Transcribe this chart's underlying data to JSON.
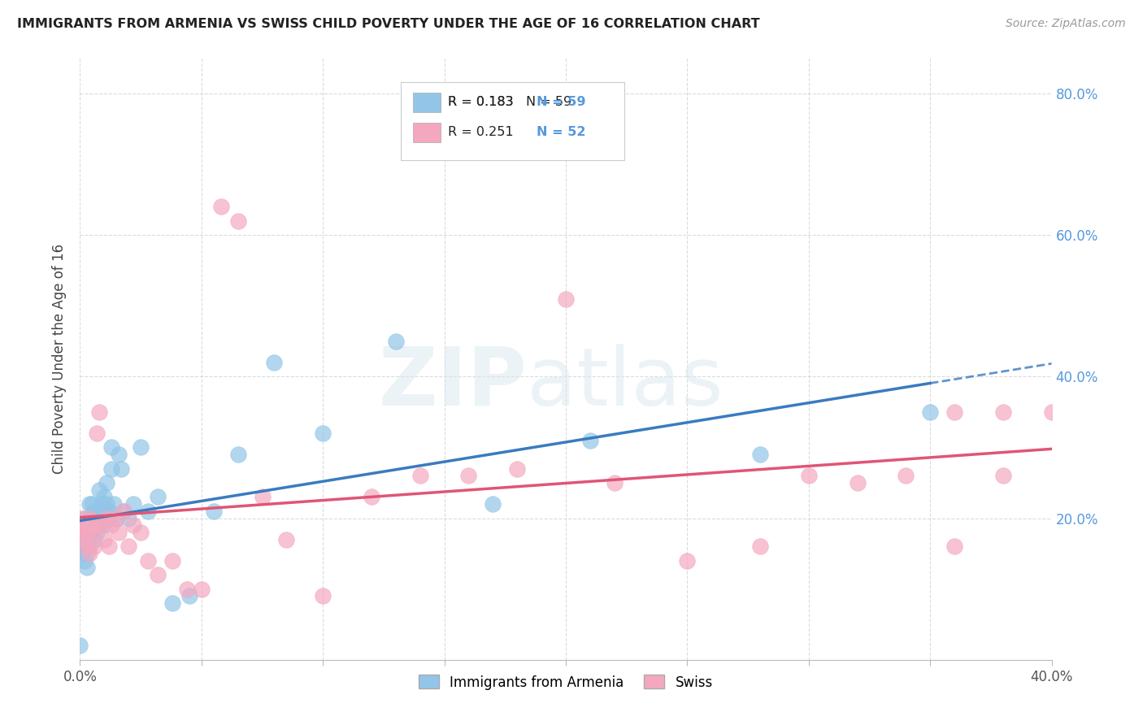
{
  "title": "IMMIGRANTS FROM ARMENIA VS SWISS CHILD POVERTY UNDER THE AGE OF 16 CORRELATION CHART",
  "source": "Source: ZipAtlas.com",
  "ylabel": "Child Poverty Under the Age of 16",
  "legend_labels": [
    "Immigrants from Armenia",
    "Swiss"
  ],
  "legend_r": [
    "R = 0.183",
    "R = 0.251"
  ],
  "legend_n": [
    "N = 59",
    "N = 52"
  ],
  "blue_color": "#92c5e8",
  "pink_color": "#f4a8bf",
  "blue_line_color": "#3a7bbf",
  "pink_line_color": "#e05575",
  "blue_x": [
    0.0,
    0.001,
    0.001,
    0.001,
    0.002,
    0.002,
    0.002,
    0.002,
    0.003,
    0.003,
    0.003,
    0.003,
    0.004,
    0.004,
    0.004,
    0.004,
    0.005,
    0.005,
    0.005,
    0.006,
    0.006,
    0.006,
    0.007,
    0.007,
    0.008,
    0.008,
    0.008,
    0.009,
    0.009,
    0.01,
    0.01,
    0.01,
    0.011,
    0.011,
    0.012,
    0.012,
    0.013,
    0.013,
    0.014,
    0.015,
    0.016,
    0.017,
    0.018,
    0.02,
    0.022,
    0.025,
    0.028,
    0.032,
    0.038,
    0.045,
    0.055,
    0.065,
    0.08,
    0.1,
    0.13,
    0.17,
    0.21,
    0.28,
    0.35
  ],
  "blue_y": [
    0.02,
    0.15,
    0.17,
    0.19,
    0.14,
    0.16,
    0.18,
    0.2,
    0.17,
    0.19,
    0.13,
    0.15,
    0.18,
    0.16,
    0.2,
    0.22,
    0.2,
    0.18,
    0.22,
    0.17,
    0.19,
    0.21,
    0.2,
    0.18,
    0.19,
    0.21,
    0.24,
    0.2,
    0.22,
    0.21,
    0.19,
    0.23,
    0.22,
    0.25,
    0.21,
    0.2,
    0.3,
    0.27,
    0.22,
    0.2,
    0.29,
    0.27,
    0.21,
    0.2,
    0.22,
    0.3,
    0.21,
    0.23,
    0.08,
    0.09,
    0.21,
    0.29,
    0.42,
    0.32,
    0.45,
    0.22,
    0.31,
    0.29,
    0.35
  ],
  "pink_x": [
    0.0,
    0.001,
    0.001,
    0.002,
    0.002,
    0.003,
    0.003,
    0.004,
    0.004,
    0.005,
    0.005,
    0.006,
    0.007,
    0.007,
    0.008,
    0.009,
    0.01,
    0.011,
    0.012,
    0.013,
    0.015,
    0.016,
    0.018,
    0.02,
    0.022,
    0.025,
    0.028,
    0.032,
    0.038,
    0.044,
    0.05,
    0.058,
    0.065,
    0.075,
    0.085,
    0.1,
    0.12,
    0.14,
    0.16,
    0.18,
    0.2,
    0.22,
    0.25,
    0.28,
    0.3,
    0.32,
    0.34,
    0.36,
    0.38,
    0.4,
    0.38,
    0.36
  ],
  "pink_y": [
    0.19,
    0.18,
    0.2,
    0.17,
    0.19,
    0.16,
    0.18,
    0.15,
    0.2,
    0.18,
    0.19,
    0.16,
    0.19,
    0.32,
    0.35,
    0.19,
    0.17,
    0.2,
    0.16,
    0.19,
    0.2,
    0.18,
    0.21,
    0.16,
    0.19,
    0.18,
    0.14,
    0.12,
    0.14,
    0.1,
    0.1,
    0.64,
    0.62,
    0.23,
    0.17,
    0.09,
    0.23,
    0.26,
    0.26,
    0.27,
    0.51,
    0.25,
    0.14,
    0.16,
    0.26,
    0.25,
    0.26,
    0.16,
    0.35,
    0.35,
    0.26,
    0.35
  ],
  "xlim": [
    0.0,
    0.4
  ],
  "ylim": [
    0.0,
    0.85
  ],
  "xticks": [
    0.0,
    0.05,
    0.1,
    0.15,
    0.2,
    0.25,
    0.3,
    0.35,
    0.4
  ],
  "xtick_show": [
    0.0,
    0.4
  ],
  "yticks": [
    0.0,
    0.2,
    0.4,
    0.6,
    0.8
  ],
  "ytick_labels_right": [
    "",
    "20.0%",
    "40.0%",
    "60.0%",
    "80.0%"
  ],
  "watermark_zip": "ZIP",
  "watermark_atlas": "atlas",
  "background_color": "#ffffff",
  "grid_color": "#cccccc"
}
